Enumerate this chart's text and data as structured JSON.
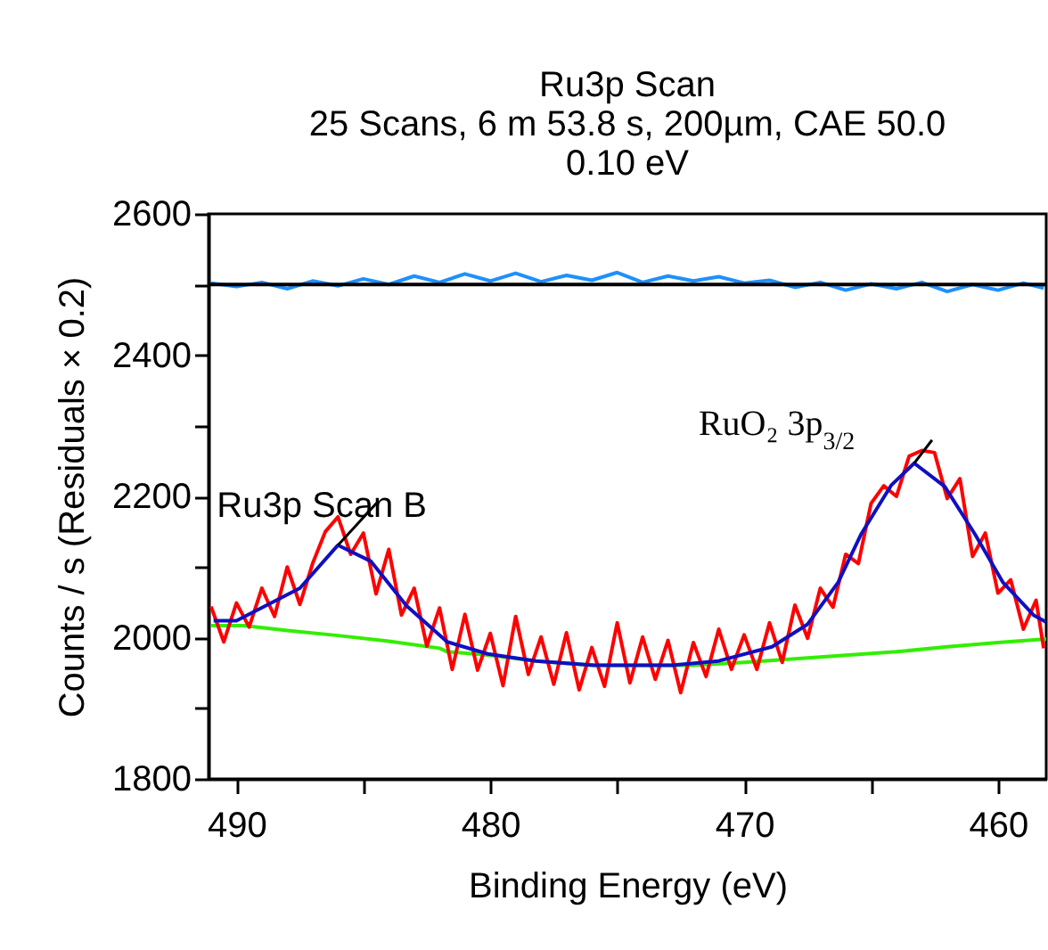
{
  "chart_data": {
    "type": "line",
    "title": "Ru3p Scan",
    "subtitle": "25 Scans,  6 m 53.8 s,  200µm,  CAE 50.0\n0.10 eV",
    "xlabel": "Binding Energy (eV)",
    "ylabel": "Counts / s  (Residuals × 0.2)",
    "xlim": [
      491.1,
      458.1
    ],
    "xticks": [
      490,
      {
        "value": 485,
        "label": null
      },
      480,
      {
        "value": 475,
        "label": null
      },
      470,
      {
        "value": 465,
        "label": null
      },
      460
    ],
    "ylim": [
      1800,
      2600
    ],
    "yticks": [
      1800,
      {
        "value": 1900,
        "label": null
      },
      2000,
      {
        "value": 2100,
        "label": null
      },
      2200,
      {
        "value": 2300,
        "label": null
      },
      2400,
      {
        "value": 2500,
        "label": null
      },
      2600
    ],
    "series": [
      {
        "color": "#33ee00",
        "x": [
          491,
          489.7,
          488,
          486,
          484,
          482,
          481.7,
          480,
          478.2,
          476,
          474,
          472,
          470,
          468,
          466,
          464,
          462,
          460,
          458.1
        ],
        "values": [
          2017,
          2017,
          2010,
          2003,
          1995,
          1985,
          1980,
          1975,
          1967,
          1961,
          1961,
          1961,
          1965,
          1970,
          1975,
          1980,
          1987,
          1993,
          1998
        ]
      },
      {
        "color": "#ff0000",
        "x": [
          491,
          490.5,
          490,
          489.5,
          489,
          488.5,
          488,
          487.5,
          487,
          486.5,
          486,
          485.5,
          485,
          484.5,
          484,
          483.5,
          483,
          482.5,
          482,
          481.5,
          481,
          480.5,
          480,
          479.5,
          479,
          478.5,
          478,
          477.5,
          477,
          476.5,
          476,
          475.5,
          475,
          474.5,
          474,
          473.5,
          473,
          472.5,
          472,
          471.5,
          471,
          470.5,
          470,
          469.5,
          469,
          468.5,
          468,
          467.5,
          467,
          466.5,
          466,
          465.5,
          465,
          464.5,
          464,
          463.5,
          463,
          462.5,
          462,
          461.5,
          461,
          460.5,
          460,
          459.5,
          459,
          458.5,
          458.2
        ],
        "values": [
          2044,
          1994,
          2049,
          2015,
          2070,
          2030,
          2100,
          2047,
          2105,
          2150,
          2171,
          2118,
          2148,
          2062,
          2125,
          2032,
          2070,
          1988,
          2042,
          1955,
          2033,
          1954,
          2006,
          1932,
          2030,
          1948,
          2001,
          1934,
          2007,
          1926,
          1986,
          1931,
          2021,
          1936,
          2001,
          1941,
          1996,
          1922,
          1993,
          1945,
          2012,
          1955,
          2004,
          1955,
          2021,
          1965,
          2046,
          1999,
          2070,
          2043,
          2118,
          2105,
          2190,
          2215,
          2200,
          2257,
          2265,
          2262,
          2197,
          2225,
          2115,
          2148,
          2063,
          2082,
          2012,
          2053,
          1985
        ]
      },
      {
        "color": "#1010c0",
        "x": [
          490.9,
          490,
          487.5,
          486,
          484.7,
          483.3,
          481.7,
          480.1,
          478.2,
          475.9,
          472.8,
          471,
          468.9,
          467.5,
          466.3,
          465.4,
          464.2,
          463.3,
          462.1,
          460.9,
          459.8,
          458.6,
          458.1
        ],
        "values": [
          2024,
          2024,
          2070,
          2131,
          2108,
          2045,
          1994,
          1977,
          1967,
          1961,
          1961,
          1967,
          1987,
          2019,
          2078,
          2146,
          2216,
          2247,
          2214,
          2146,
          2078,
          2032,
          2022
        ]
      },
      {
        "color": "#1e90ff",
        "x": [
          491,
          490,
          489,
          488,
          487,
          486,
          485,
          484,
          483,
          482,
          481,
          480,
          479,
          478,
          477,
          476,
          475,
          474,
          473,
          472,
          471,
          470,
          469,
          468,
          467,
          466,
          465,
          464,
          463,
          462,
          461,
          460,
          459,
          458.2
        ],
        "values": [
          2502,
          2497,
          2503,
          2494,
          2505,
          2498,
          2508,
          2500,
          2512,
          2503,
          2515,
          2505,
          2516,
          2504,
          2513,
          2506,
          2517,
          2503,
          2512,
          2505,
          2511,
          2502,
          2506,
          2496,
          2503,
          2492,
          2501,
          2494,
          2503,
          2490,
          2500,
          2492,
          2502,
          2495
        ]
      },
      {
        "color": "#000000",
        "x": [
          491.1,
          458.1
        ],
        "values": [
          2500,
          2500
        ]
      }
    ],
    "annotations": [
      {
        "text": "Ru3p Scan B",
        "x": 486,
        "y": 2131
      },
      {
        "text": "RuO₂ 3p$_{3/2}$",
        "x": 463.3,
        "y": 2247
      }
    ]
  }
}
